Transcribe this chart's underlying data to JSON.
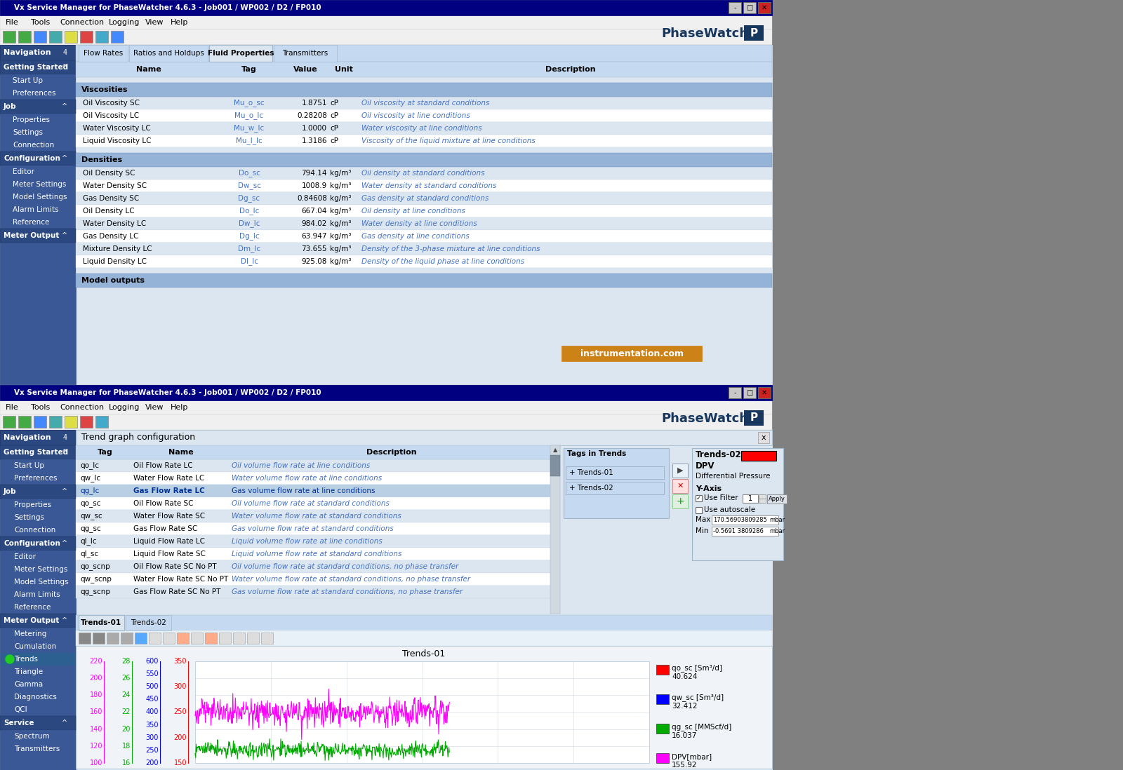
{
  "title_bar": "Vx Service Manager for PhaseWatcher 4.6.3 - Job001 / WP002 / D2 / FP010",
  "menu_items": [
    "File",
    "Tools",
    "Connection",
    "Logging",
    "View",
    "Help"
  ],
  "tab_items_top": [
    "Flow Rates",
    "Ratios and Holdups",
    "Fluid Properties",
    "Transmitters"
  ],
  "active_tab_top": "Fluid Properties",
  "nav_header": "Navigation",
  "nav_bg": "#3a5896",
  "nav_section_header_bg": "#2b4980",
  "nav_item_bg": "#3a5896",
  "nav_highlight_bg": "#2b6090",
  "table_header_bg": "#c5d9f1",
  "table_row_even": "#dce6f1",
  "table_row_odd": "#ffffff",
  "section_header_bg": "#95b3d7",
  "section_header_text": "#000000",
  "highlight_row_bg": "#b8cfe4",
  "highlight_row_text": "#003399",
  "tab_active_bg": "#dce6f1",
  "tab_inactive_bg": "#c5d9f1",
  "content_bg": "#dce6f1",
  "win_bg": "#d4d0c8",
  "title_bar_bg": "#000080",
  "title_bar_active": "#0000aa",
  "phasewatcher_color": "#17375e",
  "viscosities_rows": [
    [
      "Oil Viscosity SC",
      "Mu_o_sc",
      "1.8751",
      "cP",
      "Oil viscosity at standard conditions"
    ],
    [
      "Oil Viscosity LC",
      "Mu_o_lc",
      "0.28208",
      "cP",
      "Oil viscosity at line conditions"
    ],
    [
      "Water Viscosity LC",
      "Mu_w_lc",
      "1.0000",
      "cP",
      "Water viscosity at line conditions"
    ],
    [
      "Liquid Viscosity LC",
      "Mu_l_lc",
      "1.3186",
      "cP",
      "Viscosity of the liquid mixture at line conditions"
    ]
  ],
  "densities_rows": [
    [
      "Oil Density SC",
      "Do_sc",
      "794.14",
      "kg/m³",
      "Oil density at standard conditions"
    ],
    [
      "Water Density SC",
      "Dw_sc",
      "1008.9",
      "kg/m³",
      "Water density at standard conditions"
    ],
    [
      "Gas Density SC",
      "Dg_sc",
      "0.84608",
      "kg/m³",
      "Gas density at standard conditions"
    ],
    [
      "Oil Density LC",
      "Do_lc",
      "667.04",
      "kg/m³",
      "Oil density at line conditions"
    ],
    [
      "Water Density LC",
      "Dw_lc",
      "984.02",
      "kg/m³",
      "Water density at line conditions"
    ],
    [
      "Gas Density LC",
      "Dg_lc",
      "63.947",
      "kg/m³",
      "Gas density at line conditions"
    ],
    [
      "Mixture Density LC",
      "Dm_lc",
      "73.655",
      "kg/m³",
      "Density of the 3-phase mixture at line conditions"
    ],
    [
      "Liquid Density LC",
      "Dl_lc",
      "925.08",
      "kg/m³",
      "Density of the liquid phase at line conditions"
    ]
  ],
  "trend_rows": [
    [
      "qo_lc",
      "Oil Flow Rate LC",
      "Oil volume flow rate at line conditions"
    ],
    [
      "qw_lc",
      "Water Flow Rate LC",
      "Water volume flow rate at line conditions"
    ],
    [
      "qg_lc",
      "Gas Flow Rate LC",
      "Gas volume flow rate at line conditions"
    ],
    [
      "qo_sc",
      "Oil Flow Rate SC",
      "Oil volume flow rate at standard conditions"
    ],
    [
      "qw_sc",
      "Water Flow Rate SC",
      "Water volume flow rate at standard conditions"
    ],
    [
      "qg_sc",
      "Gas Flow Rate SC",
      "Gas volume flow rate at standard conditions"
    ],
    [
      "ql_lc",
      "Liquid Flow Rate LC",
      "Liquid volume flow rate at line conditions"
    ],
    [
      "ql_sc",
      "Liquid Flow Rate SC",
      "Liquid volume flow rate at standard conditions"
    ],
    [
      "qo_scnp",
      "Oil Flow Rate SC No PT",
      "Oil volume flow rate at standard conditions, no phase transfer"
    ],
    [
      "qw_scnp",
      "Water Flow Rate SC No PT",
      "Water volume flow rate at standard conditions, no phase transfer"
    ],
    [
      "qg_scnp",
      "Gas Flow Rate SC No PT",
      "Gas volume flow rate at standard conditions, no phase transfer"
    ]
  ],
  "highlighted_row": 2,
  "tags_in_trends": [
    "Trends-01",
    "Trends-02"
  ],
  "trends_panel_name": "Trends-02",
  "trends_panel_color": "#ff0000",
  "tab_items_bottom": [
    "Trends-01",
    "Trends-02"
  ],
  "active_tab_bottom": "Trends-01",
  "chart_title": "Trends-01",
  "legend_entries": [
    {
      "label": "qo_sc [Sm³/d]",
      "value": "40.624",
      "color": "#ff0000"
    },
    {
      "label": "qw_sc [Sm³/d]",
      "value": "32.412",
      "color": "#0000ff"
    },
    {
      "label": "qg_sc [MMScf/d]",
      "value": "16.037",
      "color": "#00aa00"
    },
    {
      "label": "DPV[mbar]",
      "value": "155.92",
      "color": "#ff00ff"
    }
  ],
  "y_left_labels": [
    "220",
    "200",
    "180",
    "160",
    "140",
    "120",
    "100"
  ],
  "y_left2_labels": [
    "28",
    "26",
    "24",
    "22",
    "20",
    "18",
    "16"
  ],
  "y_left3_labels": [
    "600",
    "550",
    "500",
    "450",
    "400",
    "350",
    "300",
    "250",
    "200"
  ],
  "y_right_labels": [
    "350",
    "300",
    "250",
    "200",
    "150"
  ],
  "y_left_color": "#ff00ff",
  "y_left2_color": "#00aa00",
  "y_left3_color": "#0000ff",
  "y_right_color": "#ff0000",
  "watermark": "instrumentation.com",
  "watermark_bg": "#cc7700",
  "nav1_sections": [
    {
      "name": "Getting Started",
      "items": [
        "Start Up",
        "Preferences"
      ],
      "expanded": true
    },
    {
      "name": "Job",
      "items": [
        "Properties",
        "Settings",
        "Connection"
      ],
      "expanded": true
    },
    {
      "name": "Configuration",
      "items": [
        "Editor",
        "Meter Settings",
        "Model Settings",
        "Alarm Limits",
        "Reference"
      ],
      "expanded": true
    },
    {
      "name": "Meter Output",
      "items": [],
      "expanded": true
    }
  ],
  "nav2_sections": [
    {
      "name": "Getting Started",
      "items": [
        "Start Up",
        "Preferences"
      ],
      "expanded": true
    },
    {
      "name": "Job",
      "items": [
        "Properties",
        "Settings",
        "Connection"
      ],
      "expanded": true
    },
    {
      "name": "Configuration",
      "items": [
        "Editor",
        "Meter Settings",
        "Model Settings",
        "Alarm Limits",
        "Reference"
      ],
      "expanded": true
    },
    {
      "name": "Meter Output",
      "items": [
        "Metering",
        "Cumulation",
        "Trends",
        "Triangle",
        "Gamma",
        "Diagnostics",
        "QCI"
      ],
      "expanded": true
    },
    {
      "name": "Service",
      "items": [
        "Spectrum",
        "Transmitters"
      ],
      "expanded": true
    }
  ],
  "trends_active_item": "Trends",
  "y_axis_max": "170.56903809285",
  "y_axis_min": "-0.5691 3809286",
  "filter_value": "1"
}
